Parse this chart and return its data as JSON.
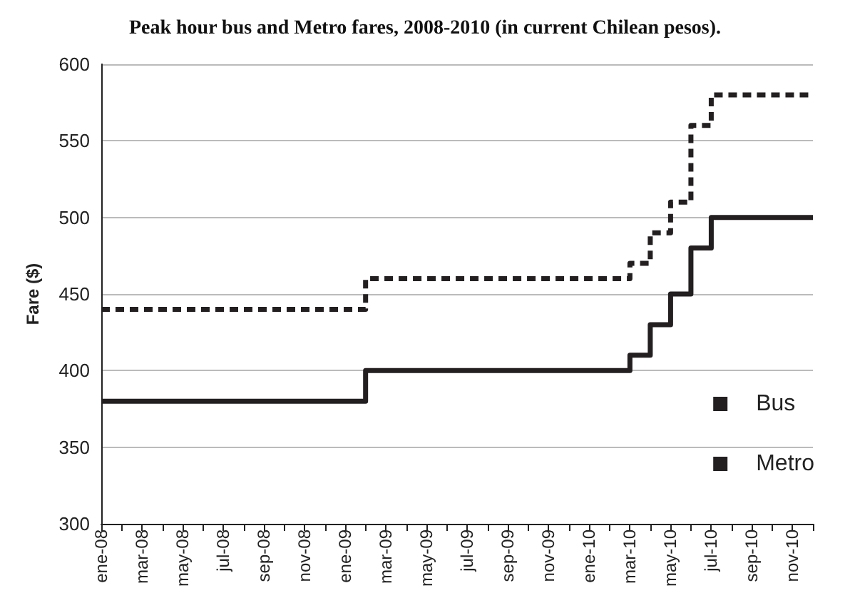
{
  "chart_data": {
    "type": "step",
    "title": "Peak hour bus and Metro fares, 2008-2010 (in current Chilean pesos).",
    "ylabel": "Fare ($)",
    "categories": [
      "ene-08",
      null,
      "mar-08",
      null,
      "may-08",
      null,
      "jul-08",
      null,
      "sep-08",
      null,
      "nov-08",
      null,
      "ene-09",
      null,
      "mar-09",
      null,
      "may-09",
      null,
      "jul-09",
      null,
      "sep-09",
      null,
      "nov-09",
      null,
      "ene-10",
      null,
      "mar-10",
      null,
      "may-10",
      null,
      "jul-10",
      null,
      "sep-10",
      null,
      "nov-10",
      null
    ],
    "series": [
      {
        "name": "Bus",
        "color": "#231f20",
        "line_style": "solid",
        "values": [
          380,
          380,
          380,
          380,
          380,
          380,
          380,
          380,
          380,
          380,
          380,
          380,
          380,
          400,
          400,
          400,
          400,
          400,
          400,
          400,
          400,
          400,
          400,
          400,
          400,
          400,
          410,
          430,
          450,
          480,
          500,
          500,
          500,
          500,
          500,
          500
        ]
      },
      {
        "name": "Metro",
        "color": "#231f20",
        "line_style": "dashed",
        "values": [
          440,
          440,
          440,
          440,
          440,
          440,
          440,
          440,
          440,
          440,
          440,
          440,
          440,
          460,
          460,
          460,
          460,
          460,
          460,
          460,
          460,
          460,
          460,
          460,
          460,
          460,
          470,
          490,
          510,
          560,
          580,
          580,
          580,
          580,
          580,
          580
        ]
      }
    ],
    "ylim": [
      300,
      600
    ],
    "yticks": [
      300,
      350,
      400,
      450,
      500,
      550,
      600
    ],
    "grid": "y",
    "legend": "right",
    "marker": "none"
  }
}
